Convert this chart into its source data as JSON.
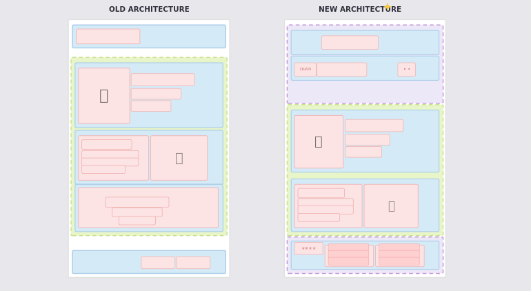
{
  "bg_color": "#e8e8ec",
  "card_bg": "#ffffff",
  "blue_fill": "#d4eaf7",
  "blue_border": "#aacce8",
  "green_fill": "#e8f5c8",
  "green_border": "#c8e08a",
  "pink_fill": "#fce4e4",
  "pink_border": "#f0b8b8",
  "purple_fill": "#ede8f8",
  "purple_border": "#c8aae8",
  "title_old": "OLD ARCHITECTURE",
  "title_new": "NEW ARCHITECTURE",
  "title_color": "#2d2d3a",
  "title_fontsize": 7.5,
  "star_color": "#f5c842"
}
